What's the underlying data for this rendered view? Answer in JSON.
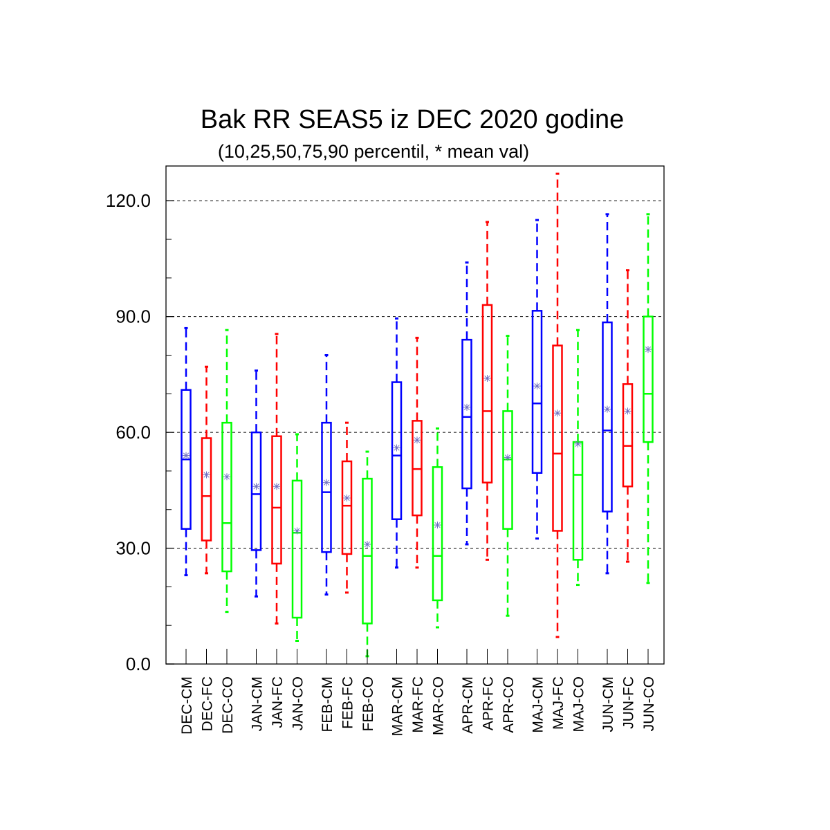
{
  "chart_data": {
    "type": "boxplot",
    "title": "Bak RR SEAS5 iz DEC 2020 godine",
    "subtitle": "(10,25,50,75,90 percentil, * mean val)",
    "ylim": [
      0,
      129
    ],
    "yticks": [
      0,
      30,
      60,
      90,
      120
    ],
    "ytick_labels": [
      "0.0",
      "30.0",
      "60.0",
      "90.0",
      "120.0"
    ],
    "y_minor_step": 10,
    "grid": "dashed horizontal at major ticks",
    "colors": {
      "CM": "#0000ff",
      "FC": "#ff0000",
      "CO": "#00ff00",
      "mean_marker": "#7070c0"
    },
    "boxes": [
      {
        "label": "DEC-CM",
        "p10": 23,
        "p25": 35,
        "p50": 53,
        "p75": 71,
        "p90": 87,
        "mean": 54,
        "color": "#0000ff"
      },
      {
        "label": "DEC-FC",
        "p10": 23.5,
        "p25": 32,
        "p50": 43.5,
        "p75": 58.5,
        "p90": 77,
        "mean": 49,
        "color": "#ff0000"
      },
      {
        "label": "DEC-CO",
        "p10": 13.5,
        "p25": 24,
        "p50": 36.5,
        "p75": 62.5,
        "p90": 86.5,
        "mean": 48.5,
        "color": "#00ff00"
      },
      {
        "label": "JAN-CM",
        "p10": 17.5,
        "p25": 29.5,
        "p50": 44,
        "p75": 60,
        "p90": 76,
        "mean": 46,
        "color": "#0000ff"
      },
      {
        "label": "JAN-FC",
        "p10": 10.5,
        "p25": 26,
        "p50": 40.5,
        "p75": 59,
        "p90": 85.5,
        "mean": 46,
        "color": "#ff0000"
      },
      {
        "label": "JAN-CO",
        "p10": 6,
        "p25": 12,
        "p50": 34,
        "p75": 47.5,
        "p90": 59.5,
        "mean": 34.5,
        "color": "#00ff00"
      },
      {
        "label": "FEB-CM",
        "p10": 18,
        "p25": 29,
        "p50": 44.5,
        "p75": 62.5,
        "p90": 80,
        "mean": 47,
        "color": "#0000ff"
      },
      {
        "label": "FEB-FC",
        "p10": 18.5,
        "p25": 28.5,
        "p50": 41,
        "p75": 52.5,
        "p90": 62.5,
        "mean": 43,
        "color": "#ff0000"
      },
      {
        "label": "FEB-CO",
        "p10": 2,
        "p25": 10.5,
        "p50": 28,
        "p75": 48,
        "p90": 55,
        "mean": 31,
        "color": "#00ff00"
      },
      {
        "label": "MAR-CM",
        "p10": 25,
        "p25": 37.5,
        "p50": 54,
        "p75": 73,
        "p90": 89.5,
        "mean": 56,
        "color": "#0000ff"
      },
      {
        "label": "MAR-FC",
        "p10": 25,
        "p25": 38.5,
        "p50": 50.5,
        "p75": 63,
        "p90": 84.5,
        "mean": 58,
        "color": "#ff0000"
      },
      {
        "label": "MAR-CO",
        "p10": 9.5,
        "p25": 16.5,
        "p50": 28,
        "p75": 51,
        "p90": 61,
        "mean": 36,
        "color": "#00ff00"
      },
      {
        "label": "APR-CM",
        "p10": 31,
        "p25": 45.5,
        "p50": 64,
        "p75": 84,
        "p90": 104,
        "mean": 66.5,
        "color": "#0000ff"
      },
      {
        "label": "APR-FC",
        "p10": 27,
        "p25": 47,
        "p50": 65.5,
        "p75": 93,
        "p90": 114.5,
        "mean": 74,
        "color": "#ff0000"
      },
      {
        "label": "APR-CO",
        "p10": 12.5,
        "p25": 35,
        "p50": 53,
        "p75": 65.5,
        "p90": 85,
        "mean": 53.5,
        "color": "#00ff00"
      },
      {
        "label": "MAJ-CM",
        "p10": 32.5,
        "p25": 49.5,
        "p50": 67.5,
        "p75": 91.5,
        "p90": 115,
        "mean": 72,
        "color": "#0000ff"
      },
      {
        "label": "MAJ-FC",
        "p10": 7,
        "p25": 34.5,
        "p50": 54.5,
        "p75": 82.5,
        "p90": 127,
        "mean": 65,
        "color": "#ff0000"
      },
      {
        "label": "MAJ-CO",
        "p10": 20.5,
        "p25": 27,
        "p50": 49,
        "p75": 57.5,
        "p90": 86.5,
        "mean": 57,
        "color": "#00ff00"
      },
      {
        "label": "JUN-CM",
        "p10": 23.5,
        "p25": 39.5,
        "p50": 60.5,
        "p75": 88.5,
        "p90": 116.5,
        "mean": 66,
        "color": "#0000ff"
      },
      {
        "label": "JUN-FC",
        "p10": 26.5,
        "p25": 46,
        "p50": 56.5,
        "p75": 72.5,
        "p90": 102,
        "mean": 65.5,
        "color": "#ff0000"
      },
      {
        "label": "JUN-CO",
        "p10": 21,
        "p25": 57.5,
        "p50": 70,
        "p75": 90,
        "p90": 116.5,
        "mean": 81.5,
        "color": "#00ff00"
      }
    ]
  }
}
